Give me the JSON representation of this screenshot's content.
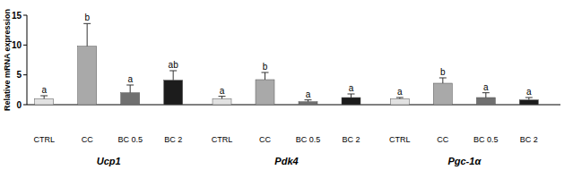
{
  "chart_data": {
    "type": "bar",
    "y_label": "Relative mRNA expression",
    "categories": [
      "Ucp1",
      "Pdk4",
      "Pgc-1α"
    ],
    "ylim": [
      0,
      15
    ],
    "yticks": [
      0,
      5,
      10,
      15
    ],
    "grid": false,
    "series": [
      {
        "name": "CTRL",
        "color": "#e2e2e2",
        "values": [
          1.0,
          1.0,
          1.0
        ],
        "errors": [
          0.5,
          0.4,
          0.2
        ],
        "letters": [
          "a",
          "a",
          "a"
        ]
      },
      {
        "name": "CC",
        "color": "#a9a9a9",
        "values": [
          9.8,
          4.2,
          3.6
        ],
        "errors": [
          3.8,
          1.2,
          0.9
        ],
        "letters": [
          "b",
          "b",
          "b"
        ]
      },
      {
        "name": "BC 0.5",
        "color": "#707070",
        "values": [
          2.0,
          0.5,
          1.2
        ],
        "errors": [
          1.3,
          0.3,
          0.8
        ],
        "letters": [
          "a",
          "a",
          "a"
        ]
      },
      {
        "name": "BC 2",
        "color": "#1c1c1c",
        "values": [
          4.1,
          1.2,
          0.8
        ],
        "errors": [
          1.6,
          0.6,
          0.4
        ],
        "letters": [
          "ab",
          "a",
          "a"
        ]
      }
    ]
  }
}
